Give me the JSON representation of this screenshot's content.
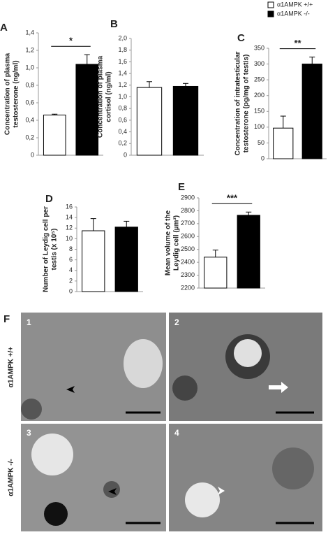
{
  "chart_data": [
    {
      "type": "bar",
      "panel": "A",
      "ylabel": [
        "Concentration of plasma",
        "testosterone (ng/ml)"
      ],
      "categories": [
        null,
        null
      ],
      "series": [
        {
          "name": "α1AMPK +/+",
          "color": "#ffffff",
          "values": [
            0.46,
            null
          ],
          "errors": [
            0.01,
            null
          ]
        },
        {
          "name": "α1AMPK -/-",
          "color": "#000000",
          "values": [
            null,
            1.04
          ],
          "errors": [
            null,
            0.11
          ]
        }
      ],
      "ylim": [
        0,
        1.4
      ],
      "yticks": [
        0,
        {
          "value": 0.2,
          "label": "0,2"
        },
        {
          "value": 0.4,
          "label": "0,4"
        },
        {
          "value": 0.6,
          "label": "0,6"
        },
        {
          "value": 0.8,
          "label": "0,8"
        },
        {
          "value": 1.0,
          "label": "1,0"
        },
        {
          "value": 1.2,
          "label": "1,2"
        },
        {
          "value": 1.4,
          "label": "1,4"
        }
      ],
      "significance": "*"
    },
    {
      "type": "bar",
      "panel": "B",
      "ylabel": [
        "Concentration of plasma",
        "cortisol (ng/ml)"
      ],
      "categories": [
        null,
        null
      ],
      "series": [
        {
          "color": "#ffffff",
          "values": [
            1.16,
            null
          ],
          "errors": [
            0.1,
            null
          ]
        },
        {
          "color": "#000000",
          "values": [
            null,
            1.18
          ],
          "errors": [
            null,
            0.05
          ]
        }
      ],
      "ylim": [
        0,
        2.0
      ],
      "yticks": [
        0,
        {
          "value": 0.2,
          "label": "0,2"
        },
        {
          "value": 0.4,
          "label": "0,4"
        },
        {
          "value": 0.6,
          "label": "0,6"
        },
        {
          "value": 0.8,
          "label": "0,8"
        },
        {
          "value": 1.0,
          "label": "1,0"
        },
        {
          "value": 1.2,
          "label": "1,2"
        },
        {
          "value": 1.4,
          "label": "1,4"
        },
        {
          "value": 1.6,
          "label": "1,6"
        },
        {
          "value": 1.8,
          "label": "1,8"
        },
        {
          "value": 2.0,
          "label": "2,0"
        }
      ]
    },
    {
      "type": "bar",
      "panel": "C",
      "ylabel": [
        "Concentration of intratesticular",
        "testosterone (pg/mg of testis)"
      ],
      "categories": [
        null,
        null
      ],
      "series": [
        {
          "color": "#ffffff",
          "values": [
            97,
            null
          ],
          "errors": [
            38,
            null
          ]
        },
        {
          "color": "#000000",
          "values": [
            null,
            300
          ],
          "errors": [
            null,
            22
          ]
        }
      ],
      "ylim": [
        0,
        350
      ],
      "yticks": [
        0,
        50,
        100,
        150,
        200,
        250,
        300,
        350
      ],
      "significance": "**"
    },
    {
      "type": "bar",
      "panel": "D",
      "ylabel": [
        "Number of Leydig cell per",
        "testis (x 10⁵)"
      ],
      "categories": [
        null,
        null
      ],
      "series": [
        {
          "color": "#ffffff",
          "values": [
            11.5,
            null
          ],
          "errors": [
            2.3,
            null
          ]
        },
        {
          "color": "#000000",
          "values": [
            null,
            12.2
          ],
          "errors": [
            null,
            1.1
          ]
        }
      ],
      "ylim": [
        0,
        16
      ],
      "yticks": [
        0,
        2,
        4,
        6,
        8,
        10,
        12,
        14,
        16
      ]
    },
    {
      "type": "bar",
      "panel": "E",
      "ylabel": [
        "Mean volume of the",
        "Leydig cell (µm³)"
      ],
      "categories": [
        null,
        null
      ],
      "series": [
        {
          "color": "#ffffff",
          "values": [
            2440,
            null
          ],
          "errors": [
            55,
            null
          ]
        },
        {
          "color": "#000000",
          "values": [
            null,
            2765
          ],
          "errors": [
            null,
            25
          ]
        }
      ],
      "ylim": [
        2200,
        2900
      ],
      "yticks": [
        2200,
        2300,
        2400,
        2500,
        2600,
        2700,
        2800,
        2900
      ],
      "significance": "***"
    }
  ],
  "panel_f": {
    "label": "F",
    "rows": [
      "α1AMPK +/+",
      "α1AMPK -/-"
    ],
    "panels": [
      "1",
      "2",
      "3",
      "4"
    ]
  }
}
